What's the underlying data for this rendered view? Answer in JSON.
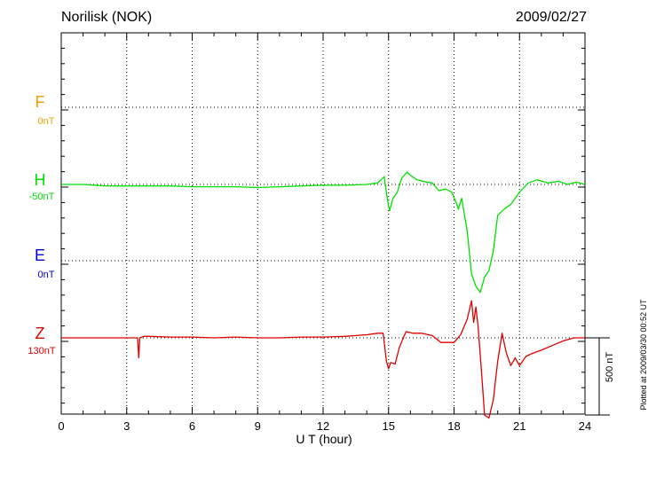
{
  "header": {
    "station": "Norilisk (NOK)",
    "date": "2009/02/27"
  },
  "components": [
    {
      "letter": "F",
      "offset": "0nT",
      "color": "#f0a000"
    },
    {
      "letter": "H",
      "offset": "-50nT",
      "color": "#00e000"
    },
    {
      "letter": "E",
      "offset": "0nT",
      "color": "#0000e0"
    },
    {
      "letter": "Z",
      "offset": "130nT",
      "color": "#e00000"
    }
  ],
  "scale_bar": {
    "label": "500 nT",
    "value_nT": 500
  },
  "footer": {
    "plotted": "Plotted at 2009/03/30 00:52 UT"
  },
  "chart_data": {
    "type": "line",
    "xlabel": "U T (hour)",
    "xlim": [
      0,
      24
    ],
    "xticks": [
      0,
      3,
      6,
      9,
      12,
      15,
      18,
      21,
      24
    ],
    "units": "nT",
    "grid": true,
    "series": [
      {
        "name": "H",
        "color": "#00e000",
        "x": [
          0,
          1,
          2,
          3,
          4,
          5,
          6,
          7,
          8,
          9,
          10,
          11,
          12,
          13,
          14,
          14.5,
          14.8,
          14.95,
          15.05,
          15.2,
          15.4,
          15.6,
          15.85,
          16.0,
          16.3,
          16.6,
          17.0,
          17.3,
          17.6,
          17.9,
          18.1,
          18.2,
          18.35,
          18.6,
          18.8,
          19.0,
          19.2,
          19.4,
          19.6,
          19.8,
          20.0,
          20.3,
          20.6,
          21.0,
          21.4,
          21.8,
          22.3,
          22.8,
          23.2,
          23.6,
          24
        ],
        "y": [
          0,
          0,
          -10,
          -10,
          -10,
          -10,
          -15,
          -15,
          -15,
          -20,
          -15,
          -10,
          -5,
          -5,
          0,
          10,
          50,
          -100,
          -170,
          -90,
          -50,
          40,
          80,
          60,
          30,
          20,
          10,
          -40,
          -30,
          -50,
          -120,
          -160,
          -90,
          -300,
          -580,
          -660,
          -700,
          -600,
          -560,
          -430,
          -200,
          -160,
          -130,
          -50,
          10,
          30,
          10,
          20,
          0,
          15,
          0
        ]
      },
      {
        "name": "Z",
        "color": "#e00000",
        "x": [
          0,
          1,
          2,
          3,
          3.5,
          3.55,
          3.6,
          3.8,
          4,
          5,
          6,
          7,
          8,
          9,
          10,
          11,
          12,
          13,
          14,
          14.5,
          14.75,
          14.9,
          15.0,
          15.1,
          15.3,
          15.5,
          15.8,
          16.1,
          16.5,
          17.0,
          17.4,
          17.7,
          18.0,
          18.3,
          18.6,
          18.8,
          18.9,
          19.0,
          19.1,
          19.25,
          19.4,
          19.6,
          19.8,
          20.0,
          20.2,
          20.4,
          20.6,
          20.8,
          21.0,
          21.3,
          21.6,
          22.0,
          22.5,
          23.0,
          23.5,
          24
        ],
        "y": [
          0,
          0,
          0,
          0,
          0,
          -130,
          0,
          10,
          10,
          5,
          5,
          0,
          5,
          0,
          0,
          5,
          5,
          10,
          20,
          30,
          30,
          -150,
          -200,
          -160,
          -170,
          -60,
          40,
          30,
          30,
          15,
          -30,
          -30,
          -30,
          20,
          120,
          240,
          100,
          200,
          80,
          -200,
          -500,
          -520,
          -400,
          -150,
          30,
          -100,
          -180,
          -130,
          -180,
          -120,
          -100,
          -80,
          -50,
          -20,
          0,
          0
        ]
      }
    ]
  }
}
